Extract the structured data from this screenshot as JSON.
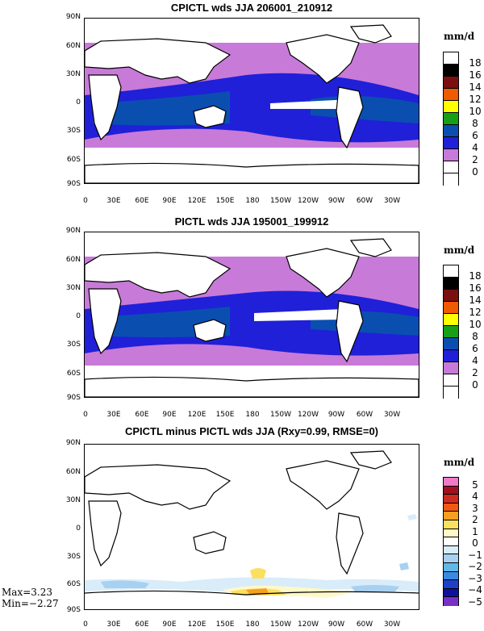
{
  "panels": [
    {
      "title": "CPICTL wds JJA 206001_210912",
      "units": "mm/d",
      "levels": [
        "18",
        "16",
        "14",
        "12",
        "10",
        "8",
        "6",
        "4",
        "2",
        "0"
      ],
      "colors": [
        "#ffffff",
        "#000000",
        "#7a0f0f",
        "#f05a00",
        "#ffff00",
        "#17a017",
        "#0a4fb0",
        "#2020d8",
        "#c87ad8",
        "#ffffff",
        "#ffffff"
      ]
    },
    {
      "title": "PICTL wds JJA 195001_199912",
      "units": "mm/d",
      "levels": [
        "18",
        "16",
        "14",
        "12",
        "10",
        "8",
        "6",
        "4",
        "2",
        "0"
      ],
      "colors": [
        "#ffffff",
        "#000000",
        "#7a0f0f",
        "#f05a00",
        "#ffff00",
        "#17a017",
        "#0a4fb0",
        "#2020d8",
        "#c87ad8",
        "#ffffff",
        "#ffffff"
      ]
    },
    {
      "title": "CPICTL minus PICTL wds JJA (Rxy=0.99, RMSE=0)",
      "units": "mm/d",
      "levels": [
        "5",
        "4",
        "3",
        "2",
        "1",
        "0",
        "−1",
        "−2",
        "−3",
        "−4",
        "−5"
      ],
      "colors": [
        "#f07ac8",
        "#a01020",
        "#d02a20",
        "#f05a10",
        "#f5a020",
        "#fbe060",
        "#fff8c8",
        "#ffffff",
        "#d8ecfa",
        "#a8d0f0",
        "#60b8e8",
        "#3a8ae0",
        "#2040c8",
        "#1010a0",
        "#7830c8"
      ]
    }
  ],
  "lat_labels": [
    "90N",
    "60N",
    "30N",
    "0",
    "30S",
    "60S",
    "90S"
  ],
  "lon_labels": [
    "0",
    "30E",
    "60E",
    "90E",
    "120E",
    "150E",
    "180",
    "150W",
    "120W",
    "90W",
    "60W",
    "30W"
  ],
  "stats": {
    "max": "Max=3.23",
    "min": "Min=−2.27"
  },
  "legend_icons": {
    "colorbar": "colorbar-icon"
  }
}
